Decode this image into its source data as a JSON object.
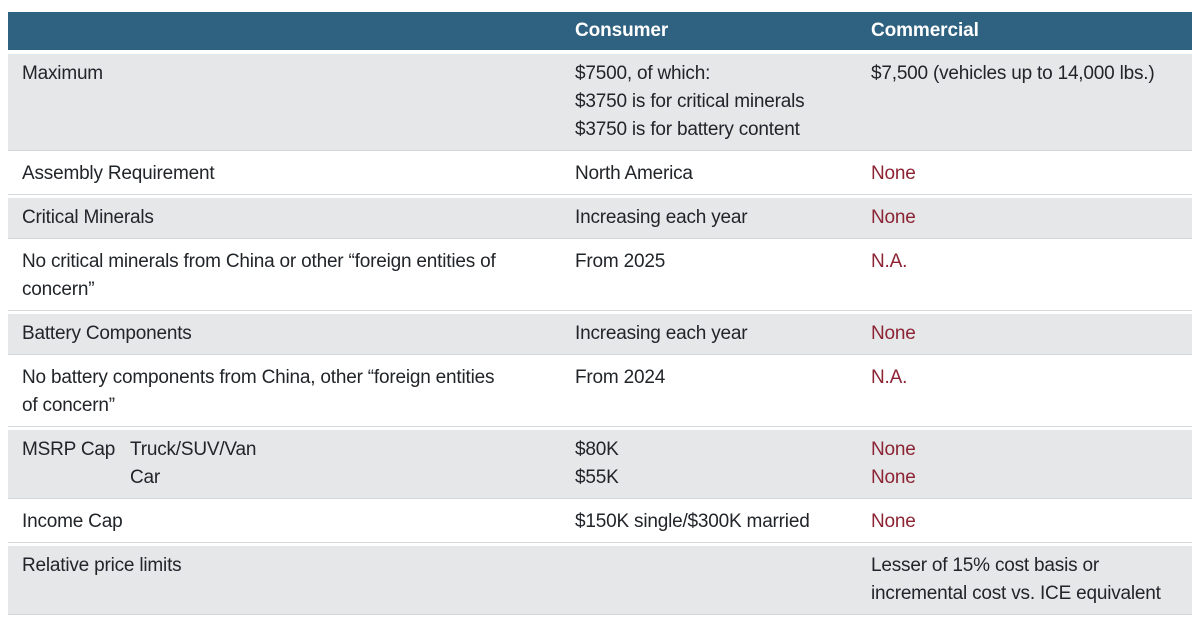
{
  "colors": {
    "header_bg": "#2f6180",
    "header_text": "#ffffff",
    "shaded_row_bg": "#e5e7e9",
    "plain_row_bg": "#ffffff",
    "body_text": "#212529",
    "accent_red": "#8c2434",
    "separator": "#d5d8db"
  },
  "chart_data": {
    "type": "table",
    "columns": [
      {
        "label": ""
      },
      {
        "label": "Consumer"
      },
      {
        "label": "Commercial"
      }
    ],
    "rows": [
      {
        "shaded": true,
        "requirement": {
          "label_lines": [
            "Maximum"
          ],
          "sub_lines": []
        },
        "consumer": [
          {
            "text": "$7500, of which:",
            "red": false
          },
          {
            "text": "$3750 is for critical minerals",
            "red": false
          },
          {
            "text": "$3750 is for battery content",
            "red": false
          }
        ],
        "commercial": [
          {
            "text": "$7,500 (vehicles up to 14,000 lbs.)",
            "red": false
          }
        ]
      },
      {
        "shaded": false,
        "requirement": {
          "label_lines": [
            "Assembly Requirement"
          ],
          "sub_lines": []
        },
        "consumer": [
          {
            "text": "North America",
            "red": false
          }
        ],
        "commercial": [
          {
            "text": "None",
            "red": true
          }
        ]
      },
      {
        "shaded": true,
        "requirement": {
          "label_lines": [
            "Critical Minerals"
          ],
          "sub_lines": []
        },
        "consumer": [
          {
            "text": "Increasing each year",
            "red": false
          }
        ],
        "commercial": [
          {
            "text": "None",
            "red": true
          }
        ]
      },
      {
        "shaded": false,
        "requirement": {
          "label_lines": [
            "No critical minerals from China or other “foreign entities of",
            "concern”"
          ],
          "sub_lines": []
        },
        "consumer": [
          {
            "text": "From 2025",
            "red": false
          }
        ],
        "commercial": [
          {
            "text": "N.A.",
            "red": true
          }
        ]
      },
      {
        "shaded": true,
        "requirement": {
          "label_lines": [
            "Battery Components"
          ],
          "sub_lines": []
        },
        "consumer": [
          {
            "text": "Increasing each year",
            "red": false
          }
        ],
        "commercial": [
          {
            "text": "None",
            "red": true
          }
        ]
      },
      {
        "shaded": false,
        "requirement": {
          "label_lines": [
            "No battery components from China, other “foreign entities",
            "of concern”"
          ],
          "sub_lines": []
        },
        "consumer": [
          {
            "text": "From 2024",
            "red": false
          }
        ],
        "commercial": [
          {
            "text": "N.A.",
            "red": true
          }
        ]
      },
      {
        "shaded": true,
        "requirement": {
          "label_lines": [
            "MSRP Cap"
          ],
          "sub_lines": [
            "Truck/SUV/Van",
            "Car"
          ]
        },
        "consumer": [
          {
            "text": "$80K",
            "red": false
          },
          {
            "text": "$55K",
            "red": false
          }
        ],
        "commercial": [
          {
            "text": "None",
            "red": true
          },
          {
            "text": "None",
            "red": true
          }
        ]
      },
      {
        "shaded": false,
        "requirement": {
          "label_lines": [
            "Income Cap"
          ],
          "sub_lines": []
        },
        "consumer": [
          {
            "text": "$150K single/$300K married",
            "red": false
          }
        ],
        "commercial": [
          {
            "text": "None",
            "red": true
          }
        ]
      },
      {
        "shaded": true,
        "requirement": {
          "label_lines": [
            "Relative price limits"
          ],
          "sub_lines": []
        },
        "consumer": [],
        "commercial": [
          {
            "text": "Lesser of 15% cost basis or",
            "red": false
          },
          {
            "text": "incremental cost vs. ICE equivalent",
            "red": false
          }
        ]
      }
    ]
  }
}
